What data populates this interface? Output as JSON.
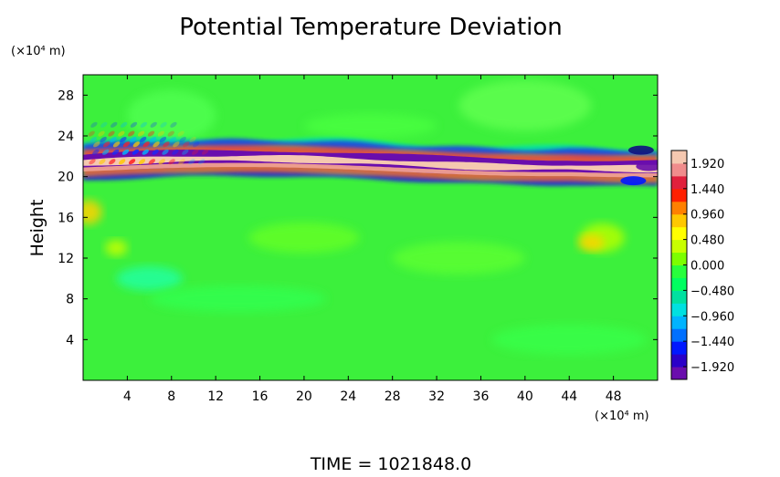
{
  "chart_data": {
    "type": "heatmap",
    "title": "Potential Temperature Deviation",
    "ylabel": "Height",
    "x_unit_label": "(×10⁴ m)",
    "y_unit_label": "(×10⁴ m)",
    "xlim": [
      0,
      52
    ],
    "ylim": [
      0,
      30
    ],
    "x_ticks": [
      4,
      8,
      12,
      16,
      20,
      24,
      28,
      32,
      36,
      40,
      44,
      48
    ],
    "y_ticks": [
      4,
      8,
      12,
      16,
      20,
      24,
      28
    ],
    "colorbar": {
      "vmin": -2.16,
      "vmax": 2.16,
      "tick_values": [
        1.92,
        1.44,
        0.96,
        0.48,
        0.0,
        -0.48,
        -0.96,
        -1.44,
        -1.92
      ],
      "tick_labels": [
        "1.920",
        "1.440",
        "0.960",
        "0.480",
        "0.000",
        "−0.480",
        "−0.960",
        "−1.440",
        "−1.920"
      ],
      "colors": [
        "#6a0dad",
        "#2a00c8",
        "#0018ff",
        "#0070ff",
        "#00b4ff",
        "#00e0e0",
        "#00e0a0",
        "#00ff60",
        "#28ff3c",
        "#7cff00",
        "#c8ff00",
        "#ffff00",
        "#ffc800",
        "#ff8000",
        "#ff2000",
        "#e0203c",
        "#f08c8c",
        "#f5c8b0"
      ]
    },
    "annotation": "TIME  =  1021848.0"
  }
}
